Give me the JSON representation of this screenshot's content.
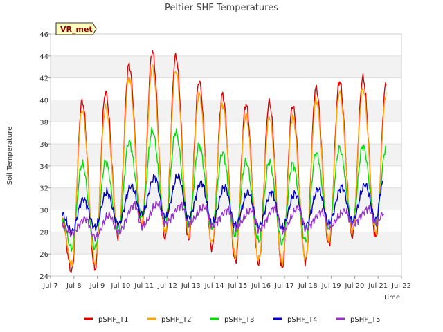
{
  "chart_data": {
    "type": "line",
    "title": "Peltier SHF Temperatures",
    "xlabel": "Time",
    "ylabel": "Soil Temperature",
    "ylim": [
      24,
      46
    ],
    "yticks": [
      24,
      26,
      28,
      30,
      32,
      34,
      36,
      38,
      40,
      42,
      44,
      46
    ],
    "xlim": [
      7,
      22
    ],
    "xticks": [
      {
        "v": 7,
        "label": "Jul 7"
      },
      {
        "v": 8,
        "label": "Jul 8"
      },
      {
        "v": 9,
        "label": "Jul 9"
      },
      {
        "v": 10,
        "label": "Jul 10"
      },
      {
        "v": 11,
        "label": "Jul 11"
      },
      {
        "v": 12,
        "label": "Jul 12"
      },
      {
        "v": 13,
        "label": "Jul 13"
      },
      {
        "v": 14,
        "label": "Jul 14"
      },
      {
        "v": 15,
        "label": "Jul 15"
      },
      {
        "v": 16,
        "label": "Jul 16"
      },
      {
        "v": 17,
        "label": "Jul 17"
      },
      {
        "v": 18,
        "label": "Jul 18"
      },
      {
        "v": 19,
        "label": "Jul 19"
      },
      {
        "v": 20,
        "label": "Jul 20"
      },
      {
        "v": 21,
        "label": "Jul 21"
      },
      {
        "v": 22,
        "label": "Jul 22"
      }
    ],
    "grid": true,
    "legend_position": "bottom",
    "badge": "VR_met",
    "x_start": 7.5,
    "x_end": 21.25,
    "series": [
      {
        "name": "pSHF_T1",
        "color": "#e00000",
        "x": [
          7.5,
          7.9,
          8.35,
          8.9,
          9.35,
          9.9,
          10.35,
          10.9,
          11.35,
          11.9,
          12.35,
          12.9,
          13.35,
          13.9,
          14.35,
          14.9,
          15.35,
          15.9,
          16.35,
          16.9,
          17.35,
          17.9,
          18.35,
          18.9,
          19.35,
          19.9,
          20.35,
          20.9,
          21.35
        ],
        "values": [
          29.0,
          24.4,
          39.9,
          24.6,
          40.7,
          27.5,
          43.2,
          28.5,
          44.4,
          27.4,
          44.0,
          27.3,
          41.7,
          26.5,
          40.5,
          25.3,
          39.6,
          25.1,
          39.8,
          24.7,
          39.5,
          25.3,
          41.1,
          26.8,
          41.7,
          27.6,
          42.0,
          27.5,
          41.6
        ]
      },
      {
        "name": "pSHF_T2",
        "color": "#ffa500",
        "x": [
          7.5,
          7.9,
          8.35,
          8.9,
          9.35,
          9.9,
          10.35,
          10.9,
          11.35,
          11.9,
          12.35,
          12.9,
          13.35,
          13.9,
          14.35,
          14.9,
          15.35,
          15.9,
          16.35,
          16.9,
          17.35,
          17.9,
          18.35,
          18.9,
          19.35,
          19.9,
          20.35,
          20.9,
          21.35
        ],
        "values": [
          29.0,
          25.0,
          39.1,
          25.2,
          39.3,
          27.9,
          42.0,
          28.9,
          43.0,
          27.9,
          42.7,
          27.8,
          40.5,
          27.0,
          39.6,
          25.8,
          38.6,
          25.5,
          38.5,
          25.2,
          38.5,
          25.5,
          40.0,
          27.2,
          40.7,
          28.0,
          41.0,
          28.0,
          40.6
        ]
      },
      {
        "name": "pSHF_T3",
        "color": "#00e000",
        "x": [
          7.5,
          7.9,
          8.35,
          8.9,
          9.35,
          9.9,
          10.35,
          10.9,
          11.35,
          11.9,
          12.35,
          12.9,
          13.35,
          13.9,
          14.35,
          14.9,
          15.35,
          15.9,
          16.35,
          16.9,
          17.35,
          17.9,
          18.35,
          18.9,
          19.35,
          19.9,
          20.35,
          20.9,
          21.35
        ],
        "values": [
          29.2,
          26.5,
          34.2,
          26.5,
          34.4,
          28.0,
          36.2,
          29.4,
          37.2,
          28.9,
          37.1,
          28.6,
          35.9,
          28.4,
          35.2,
          27.7,
          34.4,
          27.2,
          34.4,
          27.0,
          34.2,
          27.2,
          35.2,
          28.4,
          35.6,
          28.9,
          35.8,
          28.9,
          35.7
        ]
      },
      {
        "name": "pSHF_T4",
        "color": "#0000cc",
        "x": [
          7.5,
          7.9,
          8.4,
          8.9,
          9.4,
          9.9,
          10.45,
          10.9,
          11.45,
          11.9,
          12.45,
          12.9,
          13.45,
          13.9,
          14.45,
          14.9,
          15.45,
          15.9,
          16.45,
          16.9,
          17.45,
          17.9,
          18.45,
          18.9,
          19.45,
          19.9,
          20.45,
          20.9,
          21.2
        ],
        "values": [
          29.6,
          28.0,
          31.0,
          28.4,
          31.6,
          28.7,
          32.2,
          29.6,
          33.0,
          29.3,
          33.1,
          29.3,
          32.5,
          28.8,
          32.1,
          28.6,
          31.6,
          28.5,
          31.6,
          28.4,
          31.5,
          28.5,
          31.9,
          28.8,
          32.1,
          29.0,
          32.3,
          29.1,
          32.4
        ]
      },
      {
        "name": "pSHF_T5",
        "color": "#9932cc",
        "x": [
          7.5,
          7.9,
          8.5,
          8.9,
          9.5,
          9.9,
          10.6,
          10.9,
          11.6,
          11.9,
          12.6,
          12.9,
          13.6,
          13.9,
          14.6,
          14.9,
          15.6,
          15.9,
          16.6,
          16.9,
          17.6,
          17.9,
          18.6,
          18.9,
          19.6,
          19.9,
          20.6,
          20.9,
          21.25
        ],
        "values": [
          28.5,
          27.9,
          29.2,
          27.5,
          29.5,
          28.0,
          30.5,
          28.5,
          30.6,
          28.8,
          30.4,
          28.8,
          30.3,
          28.6,
          30.0,
          28.4,
          30.0,
          28.2,
          30.2,
          28.1,
          30.2,
          28.3,
          29.8,
          28.5,
          29.9,
          28.7,
          30.1,
          28.8,
          29.7
        ]
      }
    ]
  }
}
